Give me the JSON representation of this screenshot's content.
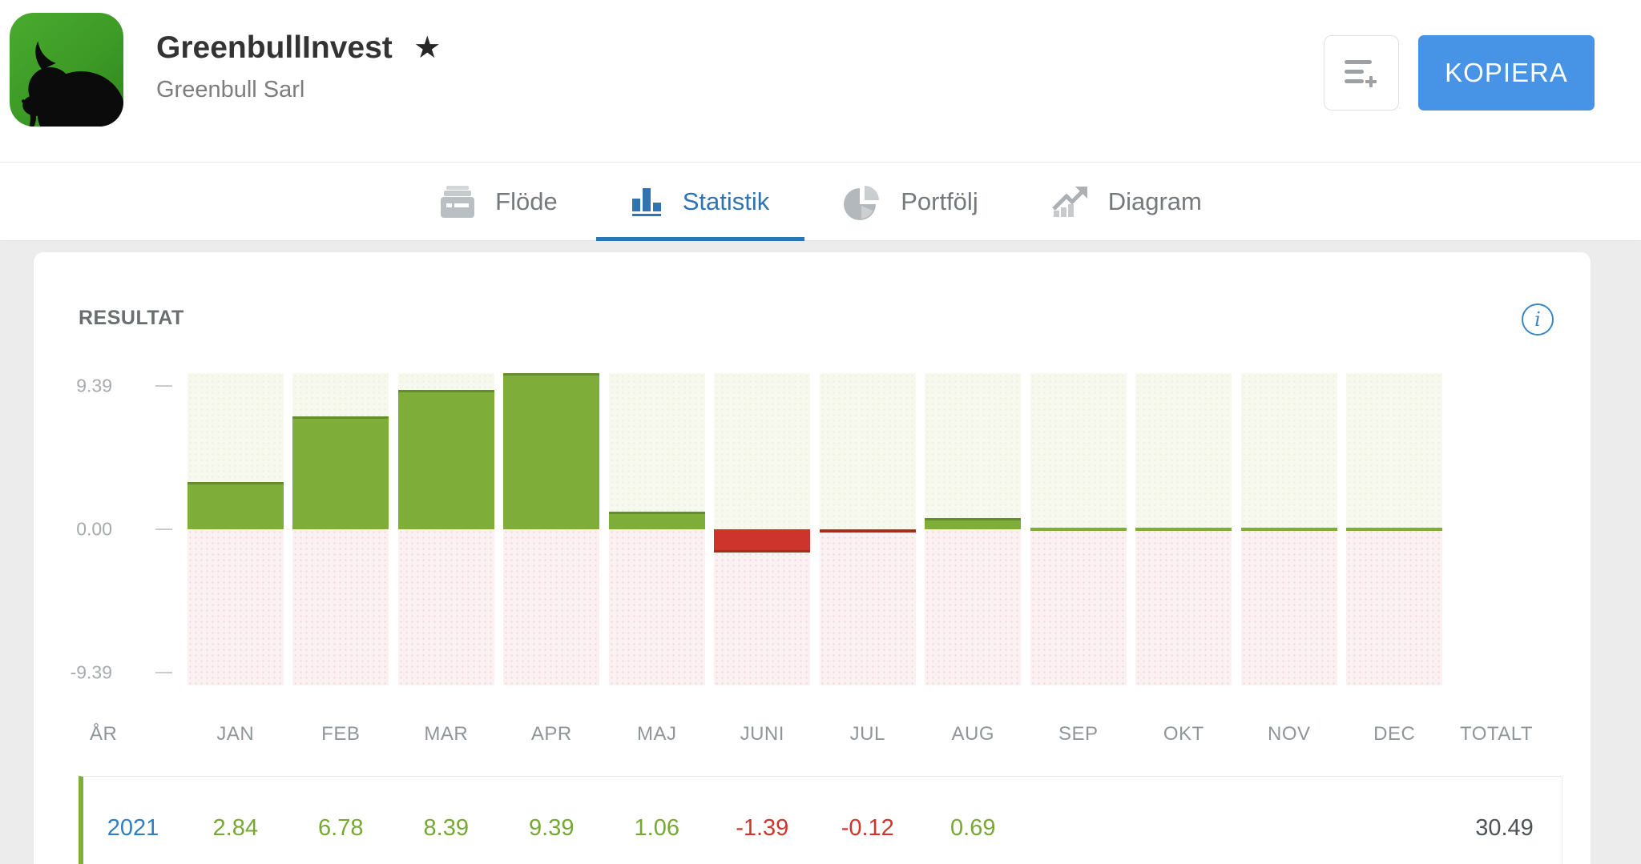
{
  "header": {
    "title": "GreenbullInvest",
    "subtitle": "Greenbull Sarl",
    "star_icon": "★",
    "copy_button_label": "KOPIERA",
    "copy_button_color": "#4793e6"
  },
  "tabs": [
    {
      "label": "Flöde",
      "icon": "feed-icon",
      "active": false
    },
    {
      "label": "Statistik",
      "icon": "bar-chart-icon",
      "active": true
    },
    {
      "label": "Portfölj",
      "icon": "pie-chart-icon",
      "active": false
    },
    {
      "label": "Diagram",
      "icon": "line-chart-icon",
      "active": false
    }
  ],
  "panel": {
    "title": "RESULTAT",
    "info_glyph": "i"
  },
  "chart_data": {
    "type": "bar",
    "title": "RESULTAT",
    "categories": [
      "JAN",
      "FEB",
      "MAR",
      "APR",
      "MAJ",
      "JUNI",
      "JUL",
      "AUG",
      "SEP",
      "OKT",
      "NOV",
      "DEC"
    ],
    "series": [
      {
        "name": "2021",
        "values": [
          2.84,
          6.78,
          8.39,
          9.39,
          1.06,
          -1.39,
          -0.12,
          0.69,
          null,
          null,
          null,
          null
        ]
      }
    ],
    "ylim": [
      -9.39,
      9.39
    ],
    "ytick_labels": [
      "9.39",
      "0.00",
      "-9.39"
    ],
    "grid": false,
    "legend": "none",
    "colors": {
      "positive": "#7fad3a",
      "negative": "#cc342c",
      "bg_positive": "#f7f8ee",
      "bg_negative": "#fbf1f2"
    }
  },
  "table": {
    "year_header": "ÅR",
    "total_header": "TOTALT",
    "rows": [
      {
        "year": "2021",
        "values": [
          2.84,
          6.78,
          8.39,
          9.39,
          1.06,
          -1.39,
          -0.12,
          0.69,
          null,
          null,
          null,
          null
        ],
        "total": 30.49
      }
    ]
  }
}
